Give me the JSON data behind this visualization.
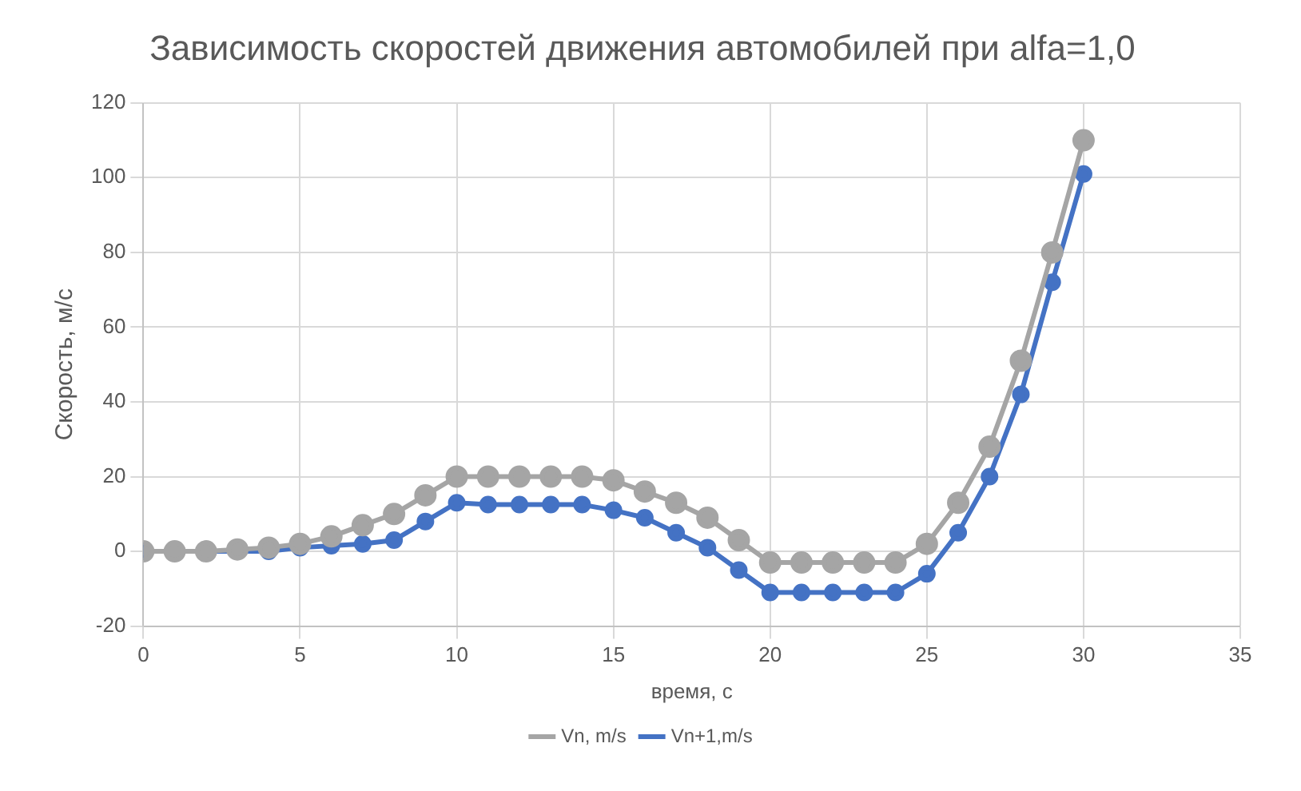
{
  "chart_data": {
    "type": "line",
    "title": "Зависимость скоростей движения автомобилей при alfa=1,0",
    "xlabel": "время, с",
    "ylabel": "Скорость, м/с",
    "x": [
      0,
      1,
      2,
      3,
      4,
      5,
      6,
      7,
      8,
      9,
      10,
      11,
      12,
      13,
      14,
      15,
      16,
      17,
      18,
      19,
      20,
      21,
      22,
      23,
      24,
      25,
      26,
      27,
      28,
      29,
      30
    ],
    "series": [
      {
        "name": "Vn, m/s",
        "color": "#a5a5a5",
        "values": [
          0,
          0,
          0,
          0.5,
          1,
          2,
          4,
          7,
          10,
          15,
          20,
          20,
          20,
          20,
          20,
          19,
          16,
          13,
          9,
          3,
          -3,
          -3,
          -3,
          -3,
          -3,
          2,
          13,
          28,
          51,
          80,
          110
        ]
      },
      {
        "name": "Vn+1,m/s",
        "color": "#4472c4",
        "values": [
          0,
          0,
          0,
          0,
          0,
          1,
          1.5,
          2,
          3,
          8,
          13,
          12.5,
          12.5,
          12.5,
          12.5,
          11,
          9,
          5,
          1,
          -5,
          -11,
          -11,
          -11,
          -11,
          -11,
          -6,
          5,
          20,
          42,
          72,
          101
        ]
      }
    ],
    "xlim": [
      0,
      35
    ],
    "xticks": [
      0,
      5,
      10,
      15,
      20,
      25,
      30,
      35
    ],
    "ylim": [
      -20,
      120
    ],
    "yticks": [
      -20,
      0,
      20,
      40,
      60,
      80,
      100,
      120
    ],
    "grid": true,
    "legend": "bottom",
    "marker": "circle",
    "line_style": "solid"
  }
}
